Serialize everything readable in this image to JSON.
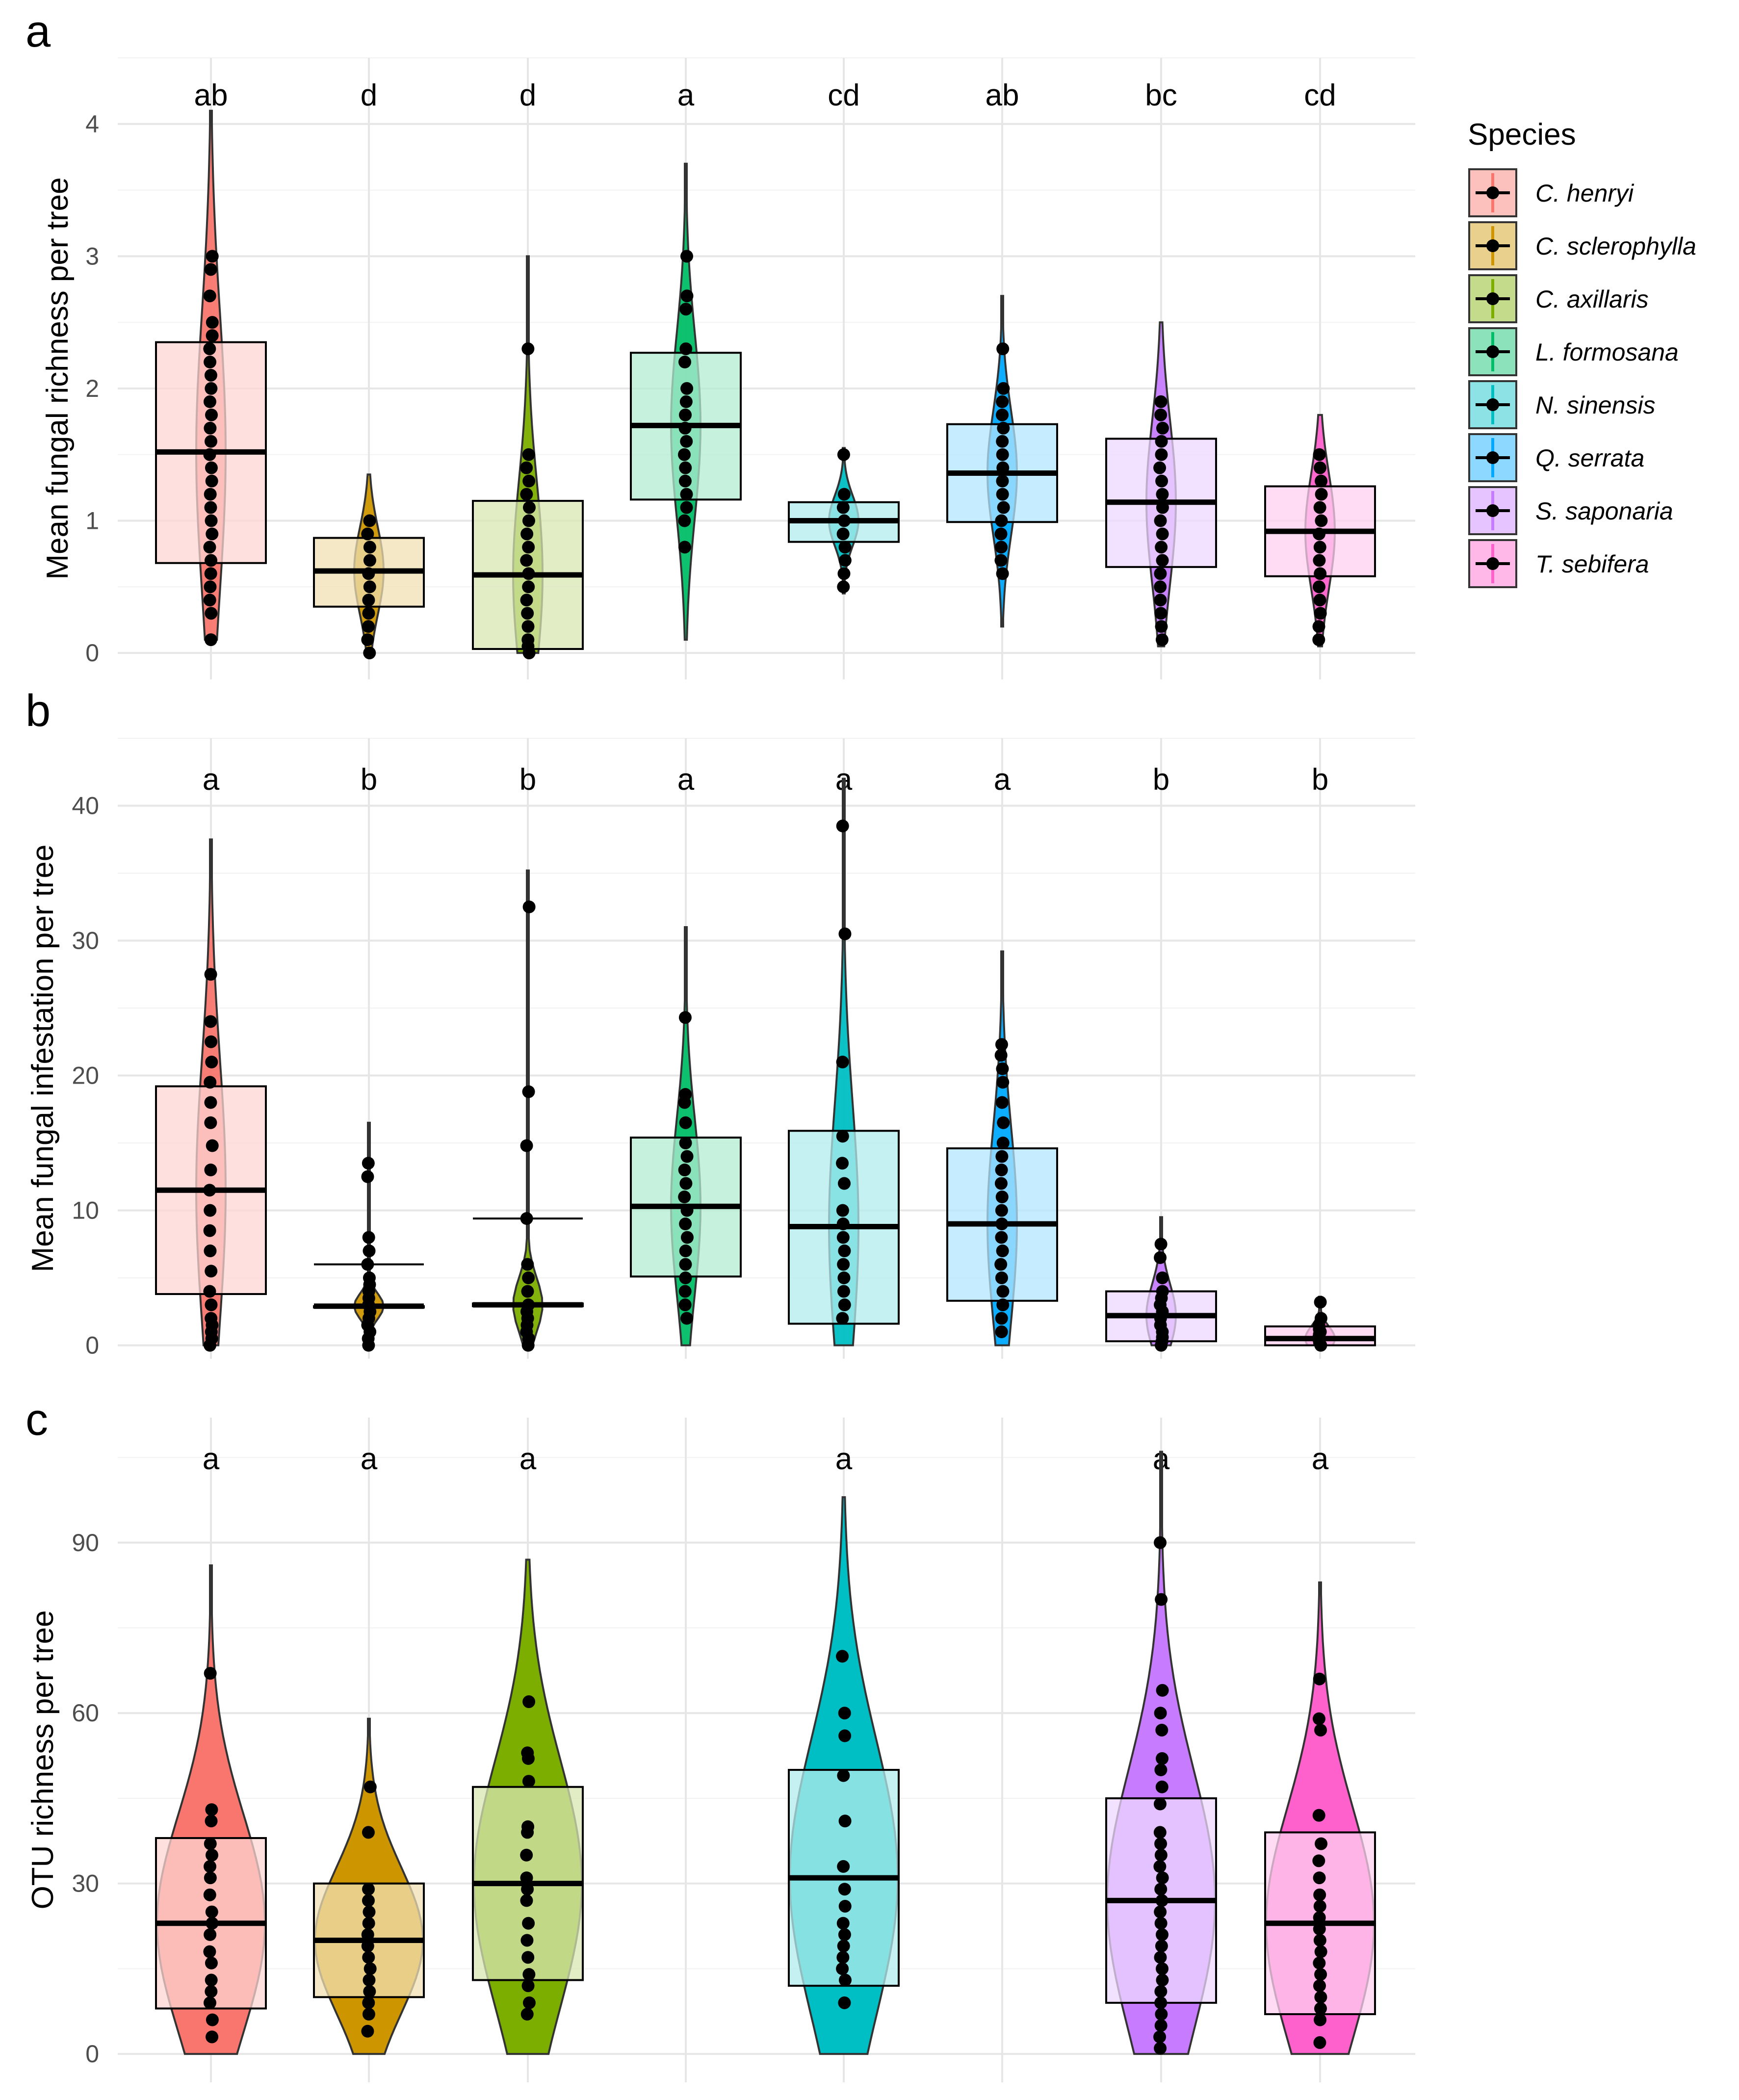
{
  "chart_data": {
    "type": "violin-box-jitter",
    "species": [
      "C. henryi",
      "C. sclerophylla",
      "C. axillaris",
      "L. formosana",
      "N. sinensis",
      "Q. serrata",
      "S. saponaria",
      "T. sebifera"
    ],
    "colors": [
      "#F8766D",
      "#CD9600",
      "#7CAE00",
      "#00BE67",
      "#00BFC4",
      "#00A9FF",
      "#C77CFF",
      "#FF61CC"
    ],
    "legend": {
      "title": "Species",
      "position": "right"
    },
    "panels": [
      {
        "letter": "a",
        "ylabel": "Mean fungal richness per tree",
        "ylim": [
          -0.2,
          4.5
        ],
        "yticks": [
          0,
          1,
          2,
          3,
          4
        ],
        "groups": [
          {
            "species": "C. henryi",
            "sig": "ab",
            "box": [
              0.68,
              1.52,
              2.35
            ],
            "violin": [
              0.1,
              4.1
            ],
            "points": [
              0.1,
              0.3,
              0.4,
              0.5,
              0.6,
              0.7,
              0.8,
              0.9,
              1.0,
              1.1,
              1.2,
              1.3,
              1.4,
              1.5,
              1.6,
              1.7,
              1.8,
              1.9,
              2.0,
              2.1,
              2.2,
              2.3,
              2.4,
              2.5,
              2.7,
              2.9,
              3.0
            ]
          },
          {
            "species": "C. sclerophylla",
            "sig": "d",
            "box": [
              0.35,
              0.62,
              0.87
            ],
            "violin": [
              0.0,
              1.35
            ],
            "points": [
              0.0,
              0.1,
              0.2,
              0.3,
              0.4,
              0.5,
              0.6,
              0.7,
              0.8,
              0.9,
              1.0
            ]
          },
          {
            "species": "C. axillaris",
            "sig": "d",
            "box": [
              0.03,
              0.59,
              1.15
            ],
            "violin": [
              0.0,
              3.0
            ],
            "points": [
              0.0,
              0.05,
              0.1,
              0.2,
              0.3,
              0.4,
              0.5,
              0.6,
              0.7,
              0.8,
              0.9,
              1.0,
              1.1,
              1.2,
              1.3,
              1.4,
              1.5,
              2.3
            ]
          },
          {
            "species": "L. formosana",
            "sig": "a",
            "box": [
              1.16,
              1.72,
              2.27
            ],
            "violin": [
              0.1,
              3.7
            ],
            "points": [
              0.8,
              1.0,
              1.1,
              1.2,
              1.3,
              1.4,
              1.5,
              1.6,
              1.7,
              1.8,
              1.9,
              2.0,
              2.2,
              2.3,
              2.6,
              2.7,
              3.0
            ]
          },
          {
            "species": "N. sinensis",
            "sig": "cd",
            "box": [
              0.84,
              1.0,
              1.14
            ],
            "violin": [
              0.45,
              1.55
            ],
            "points": [
              0.5,
              0.6,
              0.7,
              0.8,
              0.9,
              1.0,
              1.1,
              1.2,
              1.5
            ]
          },
          {
            "species": "Q. serrata",
            "sig": "ab",
            "box": [
              0.99,
              1.36,
              1.73
            ],
            "violin": [
              0.2,
              2.7
            ],
            "points": [
              0.6,
              0.7,
              0.8,
              0.9,
              1.0,
              1.1,
              1.2,
              1.3,
              1.4,
              1.5,
              1.6,
              1.7,
              1.8,
              1.9,
              2.0,
              2.3
            ]
          },
          {
            "species": "S. saponaria",
            "sig": "bc",
            "box": [
              0.65,
              1.14,
              1.62
            ],
            "violin": [
              0.05,
              2.5
            ],
            "points": [
              0.1,
              0.2,
              0.3,
              0.4,
              0.5,
              0.6,
              0.7,
              0.8,
              0.9,
              1.0,
              1.1,
              1.2,
              1.3,
              1.4,
              1.5,
              1.6,
              1.7,
              1.8,
              1.9
            ]
          },
          {
            "species": "T. sebifera",
            "sig": "cd",
            "box": [
              0.58,
              0.92,
              1.26
            ],
            "violin": [
              0.05,
              1.8
            ],
            "points": [
              0.1,
              0.2,
              0.3,
              0.4,
              0.5,
              0.6,
              0.7,
              0.8,
              0.9,
              1.0,
              1.1,
              1.2,
              1.3,
              1.4,
              1.5
            ]
          }
        ]
      },
      {
        "letter": "b",
        "ylabel": "Mean fungal infestation per tree",
        "ylim": [
          -1.0,
          45
        ],
        "yticks": [
          0,
          10,
          20,
          30,
          40
        ],
        "groups": [
          {
            "species": "C. henryi",
            "sig": "a",
            "box": [
              3.8,
              11.5,
              19.2
            ],
            "violin": [
              0.0,
              37.5
            ],
            "points": [
              0.0,
              0.5,
              1.0,
              1.5,
              2.0,
              3.0,
              4.0,
              5.5,
              7.0,
              8.5,
              10.0,
              11.5,
              13.0,
              14.8,
              16.5,
              18.0,
              19.5,
              21.0,
              22.5,
              24.0,
              27.5
            ]
          },
          {
            "species": "C. sclerophylla",
            "sig": "b",
            "box": [
              2.8,
              2.9,
              2.9
            ],
            "whisker": 6.0,
            "violin": [
              0.0,
              16.5
            ],
            "points": [
              0.0,
              0.5,
              1.0,
              1.5,
              2.0,
              2.5,
              3.0,
              3.5,
              4.0,
              4.5,
              5.0,
              6.0,
              7.0,
              8.0,
              12.5,
              13.5
            ]
          },
          {
            "species": "C. axillaris",
            "sig": "b",
            "box": [
              2.9,
              3.0,
              3.1
            ],
            "whisker": 9.4,
            "violin": [
              0.0,
              35.2
            ],
            "points": [
              0.0,
              0.5,
              1.0,
              1.5,
              2.0,
              2.5,
              3.0,
              4.0,
              5.0,
              6.0,
              9.4,
              14.8,
              18.8,
              32.5
            ]
          },
          {
            "species": "L. formosana",
            "sig": "a",
            "box": [
              5.1,
              10.3,
              15.4
            ],
            "violin": [
              0.0,
              31.0
            ],
            "points": [
              2.0,
              3.0,
              4.0,
              5.0,
              6.0,
              7.0,
              8.0,
              9.0,
              10.0,
              11.0,
              12.0,
              13.0,
              14.0,
              15.0,
              16.5,
              18.0,
              18.6,
              24.3
            ]
          },
          {
            "species": "N. sinensis",
            "sig": "a",
            "box": [
              1.6,
              8.8,
              15.9
            ],
            "violin": [
              0.0,
              42.0
            ],
            "points": [
              2.0,
              3.0,
              4.0,
              5.0,
              6.0,
              7.0,
              8.0,
              9.0,
              10.0,
              12.0,
              13.5,
              15.5,
              21.0,
              30.5,
              38.5
            ]
          },
          {
            "species": "Q. serrata",
            "sig": "a",
            "box": [
              3.3,
              9.0,
              14.6
            ],
            "violin": [
              0.0,
              29.2
            ],
            "points": [
              1.0,
              2.0,
              3.0,
              4.0,
              5.0,
              6.0,
              7.0,
              8.0,
              9.0,
              10.0,
              11.0,
              12.0,
              13.0,
              14.0,
              15.0,
              16.5,
              18.0,
              19.5,
              20.5,
              21.5,
              22.3
            ]
          },
          {
            "species": "S. saponaria",
            "sig": "b",
            "box": [
              0.3,
              2.2,
              4.0
            ],
            "violin": [
              0.0,
              9.5
            ],
            "points": [
              0.0,
              0.3,
              0.6,
              1.0,
              1.5,
              2.0,
              2.5,
              3.0,
              3.5,
              4.0,
              5.0,
              6.5,
              7.5
            ]
          },
          {
            "species": "T. sebifera",
            "sig": "b",
            "box": [
              0.0,
              0.5,
              1.4
            ],
            "violin": [
              0.0,
              3.6
            ],
            "points": [
              0.0,
              0.2,
              0.4,
              0.6,
              0.8,
              1.0,
              1.2,
              1.5,
              2.0,
              3.2
            ]
          }
        ]
      },
      {
        "letter": "c",
        "ylabel": "OTU richness per tree",
        "ylim": [
          -5,
          112
        ],
        "yticks": [
          0,
          30,
          60,
          90
        ],
        "groups": [
          {
            "species": "C. henryi",
            "sig": "a",
            "box": [
              8,
              23,
              38
            ],
            "violin": [
              0,
              86
            ],
            "points": [
              3,
              6,
              9,
              11,
              13,
              16,
              18,
              21,
              23,
              25,
              28,
              31,
              33,
              35,
              37,
              41,
              43,
              67
            ]
          },
          {
            "species": "C. sclerophylla",
            "sig": "a",
            "box": [
              10,
              20,
              30
            ],
            "violin": [
              0,
              59
            ],
            "points": [
              4,
              7,
              9,
              11,
              13,
              15,
              17,
              19,
              21,
              23,
              25,
              27,
              29,
              39,
              47
            ]
          },
          {
            "species": "C. axillaris",
            "sig": "a",
            "box": [
              13,
              30,
              47
            ],
            "violin": [
              0,
              87
            ],
            "points": [
              7,
              9,
              12,
              14,
              17,
              20,
              23,
              27,
              29,
              31,
              35,
              39,
              40,
              48,
              52,
              53,
              62
            ]
          },
          {
            "species": "N. sinensis",
            "sig": "a",
            "box": [
              12,
              31,
              50
            ],
            "violin": [
              0,
              98
            ],
            "points": [
              9,
              13,
              15,
              17,
              19,
              21,
              23,
              26,
              29,
              33,
              41,
              49,
              56,
              60,
              70
            ]
          },
          {
            "species": "S. saponaria",
            "sig": "a",
            "box": [
              9,
              27,
              45
            ],
            "violin": [
              0,
              106
            ],
            "points": [
              1,
              3,
              5,
              7,
              9,
              11,
              13,
              15,
              17,
              19,
              21,
              23,
              25,
              27,
              29,
              31,
              33,
              35,
              37,
              39,
              44,
              47,
              50,
              52,
              57,
              60,
              64,
              80,
              90
            ]
          },
          {
            "species": "T. sebifera",
            "sig": "a",
            "box": [
              7,
              23,
              39
            ],
            "violin": [
              0,
              83
            ],
            "points": [
              2,
              6,
              8,
              10,
              12,
              14,
              16,
              18,
              20,
              22,
              24,
              26,
              28,
              31,
              34,
              37,
              42,
              57,
              59,
              66
            ]
          }
        ]
      }
    ]
  }
}
